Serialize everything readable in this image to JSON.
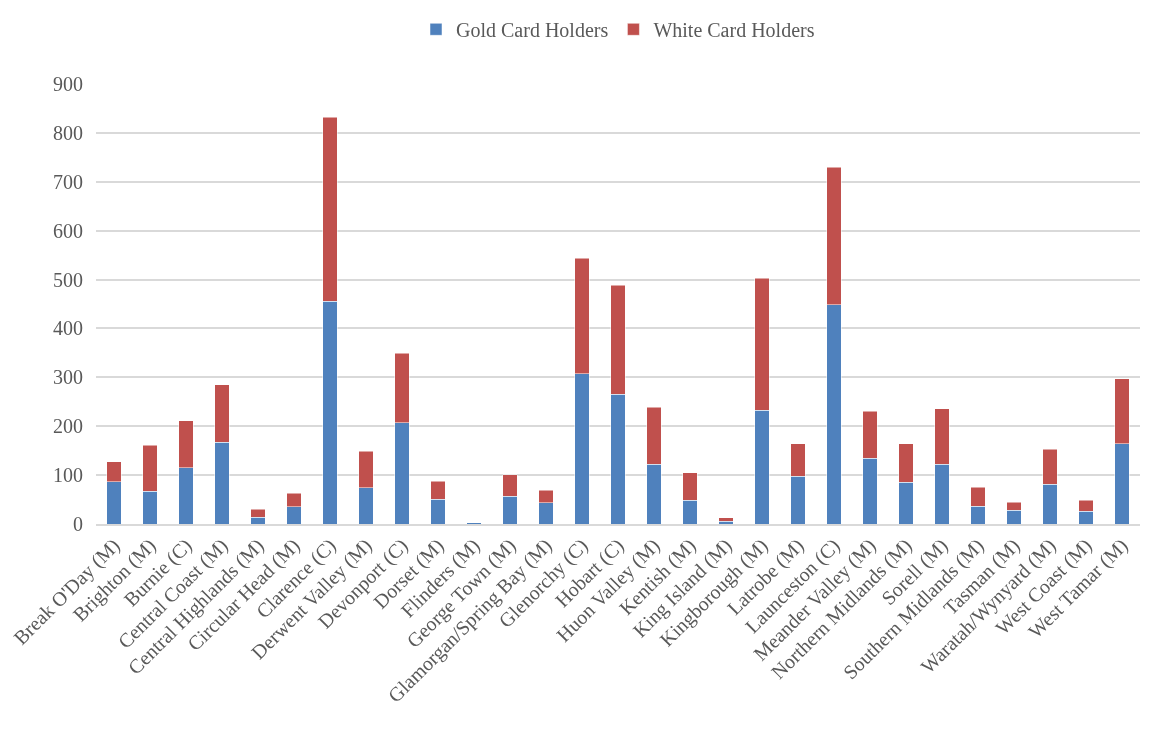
{
  "chart_data": {
    "type": "bar",
    "stacked": true,
    "grid": "y",
    "legend": "top",
    "categories": [
      "Break O'Day (M)",
      "Brighton (M)",
      "Burnie (C)",
      "Central Coast (M)",
      "Central Highlands (M)",
      "Circular Head (M)",
      "Clarence (C)",
      "Derwent Valley (M)",
      "Devonport (C)",
      "Dorset (M)",
      "Flinders (M)",
      "George Town (M)",
      "Glamorgan/Spring Bay (M)",
      "Glenorchy (C)",
      "Hobart (C)",
      "Huon Valley (M)",
      "Kentish (M)",
      "King Island (M)",
      "Kingborough (M)",
      "Latrobe (M)",
      "Launceston (C)",
      "Meander Valley (M)",
      "Northern Midlands (M)",
      "Sorell (M)",
      "Southern Midlands (M)",
      "Tasman (M)",
      "Waratah/Wynyard (M)",
      "West Coast (M)",
      "West Tamar (M)"
    ],
    "series": [
      {
        "name": "Gold Card Holders",
        "color": "#4f81bd",
        "values": [
          86,
          67,
          115,
          167,
          14,
          35,
          456,
          74,
          207,
          51,
          3,
          57,
          43,
          307,
          265,
          122,
          49,
          6,
          233,
          98,
          448,
          134,
          85,
          122,
          36,
          28,
          81,
          26,
          164
        ]
      },
      {
        "name": "White Card Holders",
        "color": "#c0504d",
        "values": [
          41,
          94,
          96,
          118,
          16,
          28,
          376,
          75,
          142,
          36,
          null,
          44,
          26,
          237,
          223,
          117,
          56,
          7,
          270,
          66,
          282,
          97,
          79,
          114,
          39,
          16,
          72,
          23,
          133
        ]
      }
    ],
    "ylim": [
      0,
      900
    ],
    "yticks": [
      0,
      100,
      200,
      300,
      400,
      500,
      600,
      700,
      800,
      900
    ]
  }
}
